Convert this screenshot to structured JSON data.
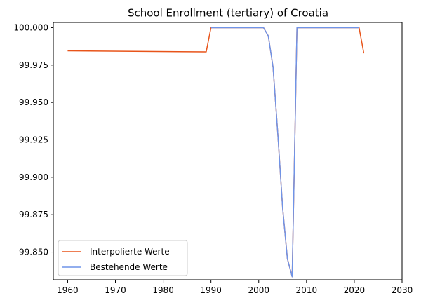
{
  "chart_data": {
    "type": "line",
    "title": "School Enrollment (tertiary) of Croatia",
    "xlabel": "",
    "ylabel": "",
    "xlim": [
      1957,
      2030
    ],
    "ylim": [
      99.8315,
      100.0035
    ],
    "xticks": [
      1960,
      1970,
      1980,
      1990,
      2000,
      2010,
      2020,
      2030
    ],
    "xtick_labels": [
      "1960",
      "1970",
      "1980",
      "1990",
      "2000",
      "2010",
      "2020",
      "2030"
    ],
    "yticks": [
      99.85,
      99.875,
      99.9,
      99.925,
      99.95,
      99.975,
      100.0
    ],
    "ytick_labels": [
      "99.850",
      "99.875",
      "99.900",
      "99.925",
      "99.950",
      "99.975",
      "100.000"
    ],
    "grid": false,
    "legend_position": "lower-left",
    "series": [
      {
        "name": "Interpolierte Werte",
        "color": "#e8541a",
        "x": [
          1960,
          1989,
          1990,
          2001,
          2002,
          2003,
          2004,
          2005,
          2006,
          2007,
          2008,
          2021,
          2022
        ],
        "y": [
          99.9845,
          99.9838,
          100.0,
          100.0,
          99.9945,
          99.9735,
          99.9285,
          99.8795,
          99.8455,
          99.8335,
          100.0,
          100.0,
          99.9828
        ]
      },
      {
        "name": "Bestehende Werte",
        "color": "#6f94e8",
        "x": [
          1990,
          2001,
          2002,
          2003,
          2004,
          2005,
          2006,
          2007,
          2008,
          2021
        ],
        "y": [
          100.0,
          100.0,
          99.9945,
          99.9735,
          99.9285,
          99.8795,
          99.8455,
          99.8335,
          100.0,
          100.0
        ]
      }
    ]
  }
}
